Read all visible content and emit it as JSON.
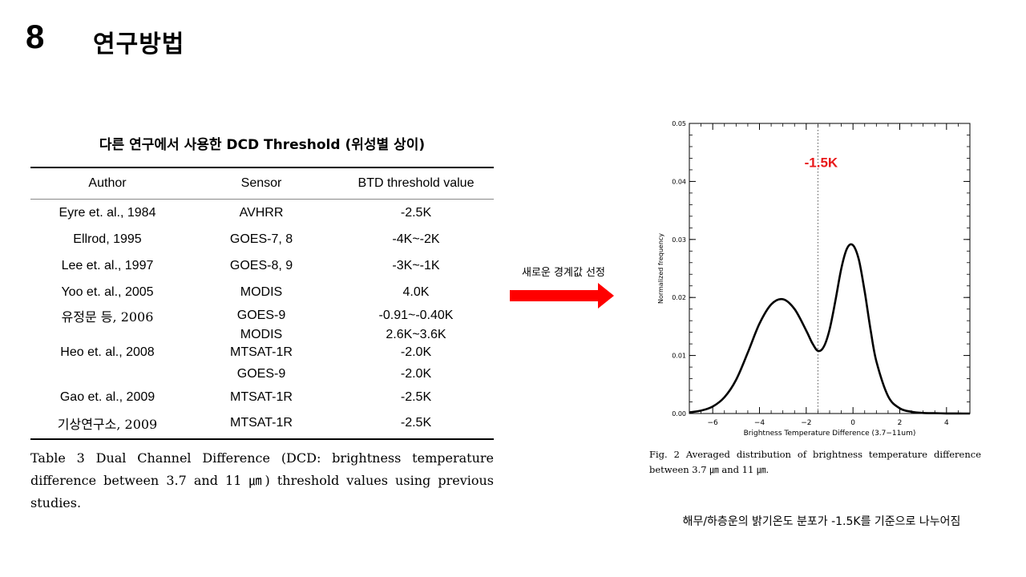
{
  "slide": {
    "number": "8",
    "title": "연구방법"
  },
  "table": {
    "title": "다른 연구에서 사용한 DCD Threshold (위성별 상이)",
    "headers": [
      "Author",
      "Sensor",
      "BTD  threshold  value"
    ],
    "rows": [
      {
        "author": "Eyre  et.  al.,  1984",
        "sensor": "AVHRR",
        "value": "-2.5K"
      },
      {
        "author": "Ellrod,  1995",
        "sensor": "GOES-7,  8",
        "value": "-4K~-2K"
      },
      {
        "author": "Lee  et.  al.,  1997",
        "sensor": "GOES-8,  9",
        "value": "-3K~-1K"
      },
      {
        "author": "Yoo  et.  al.,  2005",
        "sensor": "MODIS",
        "value": "4.0K"
      },
      {
        "author": "유정문  등,  2006",
        "sensor": "GOES-9",
        "value": "-0.91~-0.40K"
      },
      {
        "author": "",
        "sensor": "MODIS",
        "value": "2.6K~3.6K"
      },
      {
        "author": "Heo  et.  al.,  2008",
        "sensor": "MTSAT-1R",
        "value": "-2.0K"
      },
      {
        "author": "",
        "sensor": "GOES-9",
        "value": "-2.0K"
      },
      {
        "author": "Gao  et.  al.,  2009",
        "sensor": "MTSAT-1R",
        "value": "-2.5K"
      },
      {
        "author": "기상연구소,  2009",
        "sensor": "MTSAT-1R",
        "value": "-2.5K"
      }
    ],
    "caption": "Table 3 Dual Channel Difference (DCD: brightness temperature difference between 3.7 and 11 ㎛) threshold values using previous studies."
  },
  "arrow": {
    "label": "새로운 경계값 선정",
    "color": "#ff0000"
  },
  "chart_data": {
    "type": "line",
    "xlabel": "Brightness Temperature Difference (3.7−11um)",
    "ylabel": "Normalized frequency",
    "xlim": [
      -7,
      5
    ],
    "ylim": [
      0,
      0.05
    ],
    "xticks": [
      -6,
      -4,
      -2,
      0,
      2,
      4
    ],
    "xtick_labels": [
      "−6",
      "−4",
      "−2",
      "0",
      "2",
      "4"
    ],
    "yticks": [
      0,
      0.01,
      0.02,
      0.03,
      0.04,
      0.05
    ],
    "ytick_labels": [
      "0.00",
      "0.01",
      "0.02",
      "0.03",
      "0.04",
      "0.05"
    ],
    "threshold": {
      "x": -1.5,
      "label": "-1.5K",
      "color": "#e8191a"
    },
    "series": [
      {
        "x": [
          -7,
          -6.5,
          -6,
          -5.5,
          -5,
          -4.5,
          -4,
          -3.5,
          -3,
          -2.5,
          -2,
          -1.75,
          -1.5,
          -1.25,
          -1,
          -0.75,
          -0.5,
          -0.25,
          0,
          0.25,
          0.5,
          0.75,
          1,
          1.5,
          2,
          2.5,
          3,
          3.5,
          4,
          4.5,
          5
        ],
        "y": [
          0.0002,
          0.0005,
          0.0012,
          0.0028,
          0.0058,
          0.0105,
          0.0155,
          0.0188,
          0.0197,
          0.018,
          0.0143,
          0.0122,
          0.0108,
          0.0115,
          0.0145,
          0.0195,
          0.025,
          0.0285,
          0.029,
          0.0265,
          0.021,
          0.0145,
          0.009,
          0.003,
          0.0009,
          0.0003,
          0.0001,
          5e-05,
          2e-05,
          1e-05,
          0
        ]
      }
    ]
  },
  "figure": {
    "caption": "Fig. 2 Averaged distribution of brightness temperature difference between 3.7 ㎛ and 11 ㎛."
  },
  "note": "해무/하층운의 밝기온도 분포가 -1.5K를 기준으로 나누어짐"
}
